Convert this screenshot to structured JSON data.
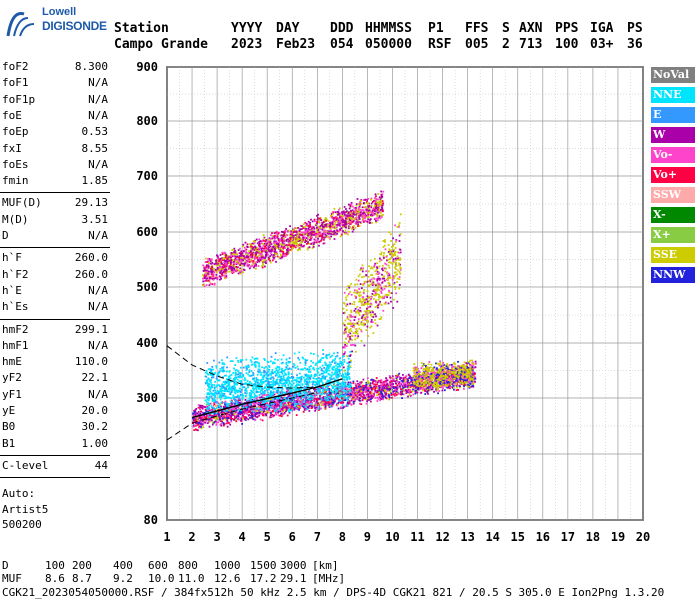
{
  "logo": {
    "line1": "Lowell",
    "line2": "DIGISONDE"
  },
  "header": {
    "row1": [
      "Station",
      "YYYY",
      "DAY",
      "DDD",
      "HHMMSS",
      "P1",
      "FFS",
      "S",
      "AXN",
      "PPS",
      "IGA",
      "PS"
    ],
    "row2": [
      "Campo Grande",
      "2023",
      "Feb23",
      "054",
      "050000",
      "RSF",
      "005",
      "2",
      "713",
      "100",
      "03+",
      "36"
    ]
  },
  "parameters": {
    "group1": [
      {
        "name": "foF2",
        "value": "8.300"
      },
      {
        "name": "foF1",
        "value": "N/A"
      },
      {
        "name": "foF1p",
        "value": "N/A"
      },
      {
        "name": "foE",
        "value": "N/A"
      },
      {
        "name": "foEp",
        "value": "0.53"
      },
      {
        "name": "fxI",
        "value": "8.55"
      },
      {
        "name": "foEs",
        "value": "N/A"
      },
      {
        "name": "fmin",
        "value": "1.85"
      }
    ],
    "group2": [
      {
        "name": "MUF(D)",
        "value": "29.13"
      },
      {
        "name": "M(D)",
        "value": "3.51"
      },
      {
        "name": "D",
        "value": "N/A"
      }
    ],
    "group3": [
      {
        "name": "h`F",
        "value": "260.0"
      },
      {
        "name": "h`F2",
        "value": "260.0"
      },
      {
        "name": "h`E",
        "value": "N/A"
      },
      {
        "name": "h`Es",
        "value": "N/A"
      }
    ],
    "group4": [
      {
        "name": "hmF2",
        "value": "299.1"
      },
      {
        "name": "hmF1",
        "value": "N/A"
      },
      {
        "name": "hmE",
        "value": "110.0"
      },
      {
        "name": "yF2",
        "value": "22.1"
      },
      {
        "name": "yF1",
        "value": "N/A"
      },
      {
        "name": "yE",
        "value": "20.0"
      },
      {
        "name": "B0",
        "value": "30.2"
      },
      {
        "name": "B1",
        "value": "1.00"
      }
    ],
    "group5": [
      {
        "name": "C-level",
        "value": "44"
      }
    ],
    "autoscale": [
      "Auto:",
      "Artist5",
      "500200"
    ]
  },
  "legend": [
    {
      "label": "NoVal",
      "color": "#808080",
      "text_color": "#ffffff"
    },
    {
      "label": "NNE",
      "color": "#00e5ff",
      "text_color": "#ffffff"
    },
    {
      "label": "E",
      "color": "#3399ff",
      "text_color": "#ffffff"
    },
    {
      "label": "W",
      "color": "#aa00aa",
      "text_color": "#ffffff"
    },
    {
      "label": "Vo-",
      "color": "#ff44cc",
      "text_color": "#ffffff"
    },
    {
      "label": "Vo+",
      "color": "#ff0044",
      "text_color": "#ffffff"
    },
    {
      "label": "SSW",
      "color": "#ffaaaa",
      "text_color": "#ffffff"
    },
    {
      "label": "X-",
      "color": "#008800",
      "text_color": "#ffffff"
    },
    {
      "label": "X+",
      "color": "#88cc44",
      "text_color": "#ffffff"
    },
    {
      "label": "SSE",
      "color": "#cccc00",
      "text_color": "#ffffff"
    },
    {
      "label": "NNW",
      "color": "#2222dd",
      "text_color": "#ffffff"
    }
  ],
  "footer": {
    "d_label": "D",
    "d_values": [
      "100",
      "200",
      "400",
      "600",
      "800",
      "1000",
      "1500",
      "3000",
      "[km]"
    ],
    "muf_label": "MUF",
    "muf_values": [
      "8.6",
      "8.7",
      "9.2",
      "10.0",
      "11.0",
      "12.6",
      "17.2",
      "29.1",
      "[MHz]"
    ],
    "file_line": "CGK21_2023054050000.RSF / 384fx512h 50 kHz 2.5 km / DPS-4D CGK21 821 / 20.5 S 305.0 E Ion2Png 1.3.20"
  },
  "chart_data": {
    "type": "scatter",
    "title": "",
    "xlabel": "",
    "ylabel": "",
    "xlim": [
      1,
      20
    ],
    "ylim": [
      80,
      900
    ],
    "x_ticks": [
      1,
      2,
      3,
      4,
      5,
      6,
      7,
      8,
      9,
      10,
      11,
      12,
      13,
      14,
      15,
      16,
      17,
      18,
      19,
      20
    ],
    "y_ticks": [
      80,
      200,
      300,
      400,
      500,
      600,
      700,
      800,
      900
    ],
    "y_minor_step": 50,
    "x_minor_step": 0.5,
    "grid": true,
    "legend_position": "right",
    "traces": [
      {
        "name": "F2 O-trace (1st hop)",
        "x_range": [
          2.0,
          13.3
        ],
        "h_start": 265,
        "h_end": 345,
        "spread": 25,
        "mix": [
          [
            "#ff44cc",
            3
          ],
          [
            "#aa00aa",
            3
          ],
          [
            "#ff0044",
            2
          ],
          [
            "#2222dd",
            2
          ],
          [
            "#cccc00",
            1
          ]
        ]
      },
      {
        "name": "Cyan spread echoes",
        "x_range": [
          2.5,
          8.3
        ],
        "h_start": 320,
        "h_end": 340,
        "spread": 55,
        "mix": [
          [
            "#00e5ff",
            4
          ],
          [
            "#3399ff",
            1
          ]
        ]
      },
      {
        "name": "Yellow X-trace cluster",
        "x_range": [
          10.8,
          13.2
        ],
        "h_start": 340,
        "h_end": 345,
        "spread": 28,
        "mix": [
          [
            "#cccc00",
            4
          ],
          [
            "#ff44cc",
            1
          ],
          [
            "#2222dd",
            1
          ]
        ]
      },
      {
        "name": "2nd hop",
        "x_range": [
          2.4,
          9.6
        ],
        "h_start": 525,
        "h_end": 650,
        "spread": 30,
        "mix": [
          [
            "#aa00aa",
            3
          ],
          [
            "#ff44cc",
            2
          ],
          [
            "#cccc00",
            2
          ],
          [
            "#ff0044",
            1
          ]
        ]
      },
      {
        "name": "Vertical spread at ~8-10 MHz",
        "x_range": [
          8.0,
          10.3
        ],
        "h_start": 420,
        "h_end": 560,
        "spread": 80,
        "mix": [
          [
            "#cccc00",
            3
          ],
          [
            "#aa00aa",
            1
          ],
          [
            "#ff44cc",
            1
          ]
        ]
      }
    ],
    "profile_curve": {
      "x": [
        2.0,
        3.0,
        4.0,
        5.0,
        6.0,
        7.0,
        8.0
      ],
      "y": [
        265,
        277,
        289,
        299,
        309,
        320,
        335
      ]
    },
    "dashed_curves": [
      {
        "x": [
          1.0,
          2.0,
          3.0,
          4.0,
          5.0,
          6.0,
          7.0
        ],
        "y": [
          395,
          360,
          340,
          325,
          320,
          318,
          320
        ]
      },
      {
        "x": [
          1.0,
          2.0,
          3.0,
          4.0,
          5.0,
          6.0,
          7.0
        ],
        "y": [
          225,
          255,
          268,
          280,
          290,
          300,
          310
        ]
      }
    ]
  }
}
